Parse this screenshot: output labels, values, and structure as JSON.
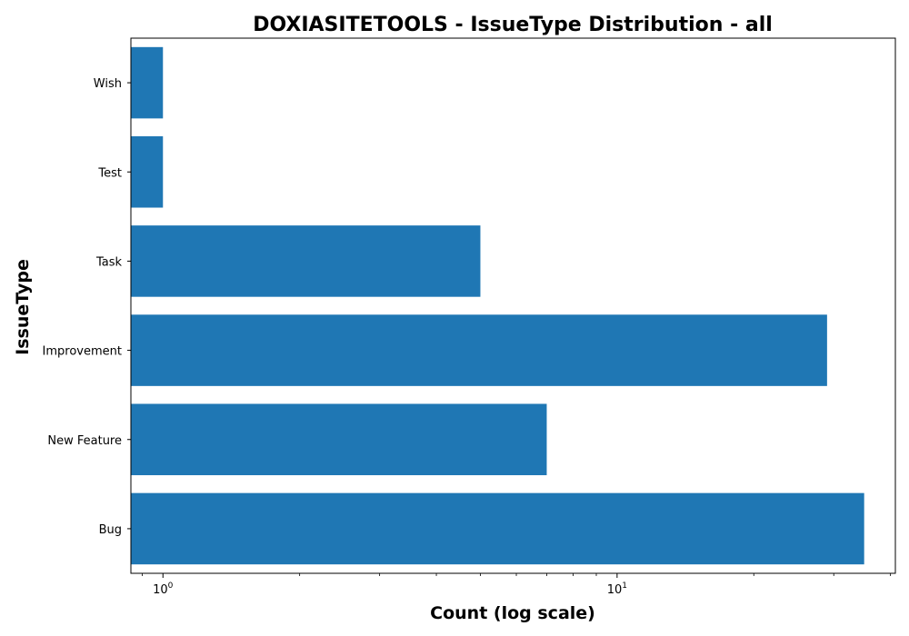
{
  "chart_data": {
    "type": "bar",
    "orientation": "horizontal",
    "title": "DOXIASITETOOLS - IssueType Distribution - all",
    "xlabel": "Count (log scale)",
    "ylabel": "IssueType",
    "x_scale": "log",
    "xlim": [
      0.85,
      41
    ],
    "categories": [
      "Bug",
      "New Feature",
      "Improvement",
      "Task",
      "Test",
      "Wish"
    ],
    "values": [
      35,
      7,
      29,
      5,
      1,
      1
    ],
    "x_ticks": [
      {
        "value": 1,
        "base": "10",
        "exp": "0"
      },
      {
        "value": 10,
        "base": "10",
        "exp": "1"
      }
    ],
    "grid": false,
    "legend": "none",
    "bar_color": "#1f77b4"
  }
}
